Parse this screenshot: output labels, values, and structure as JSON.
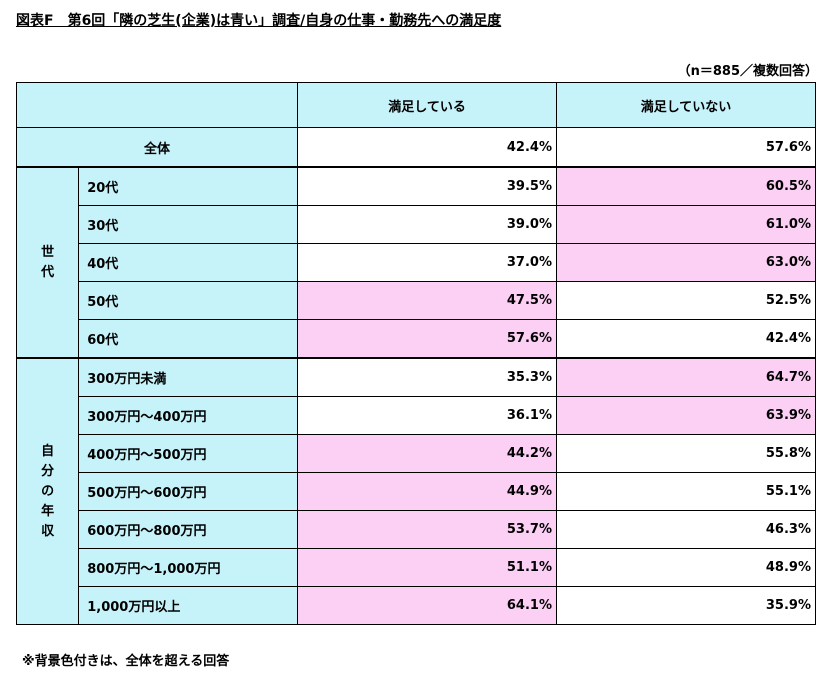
{
  "title": "図表F　第6回「隣の芝生(企業)は青い」調査/自身の仕事・勤務先への満足度",
  "sample_note": "（n＝885／複数回答）",
  "columns": {
    "satisfied": "満足している",
    "not_satisfied": "満足していない"
  },
  "total": {
    "label": "全体",
    "satisfied": "42.4%",
    "not_satisfied": "57.6%"
  },
  "groups": [
    {
      "label": "世代",
      "rows": [
        {
          "label": "20代",
          "satisfied": "39.5%",
          "not_satisfied": "60.5%",
          "hl": "not_satisfied"
        },
        {
          "label": "30代",
          "satisfied": "39.0%",
          "not_satisfied": "61.0%",
          "hl": "not_satisfied"
        },
        {
          "label": "40代",
          "satisfied": "37.0%",
          "not_satisfied": "63.0%",
          "hl": "not_satisfied"
        },
        {
          "label": "50代",
          "satisfied": "47.5%",
          "not_satisfied": "52.5%",
          "hl": "satisfied"
        },
        {
          "label": "60代",
          "satisfied": "57.6%",
          "not_satisfied": "42.4%",
          "hl": "satisfied"
        }
      ]
    },
    {
      "label": "自分の年収",
      "rows": [
        {
          "label": "300万円未満",
          "satisfied": "35.3%",
          "not_satisfied": "64.7%",
          "hl": "not_satisfied"
        },
        {
          "label": "300万円～400万円",
          "satisfied": "36.1%",
          "not_satisfied": "63.9%",
          "hl": "not_satisfied"
        },
        {
          "label": "400万円～500万円",
          "satisfied": "44.2%",
          "not_satisfied": "55.8%",
          "hl": "satisfied"
        },
        {
          "label": "500万円～600万円",
          "satisfied": "44.9%",
          "not_satisfied": "55.1%",
          "hl": "satisfied"
        },
        {
          "label": "600万円～800万円",
          "satisfied": "53.7%",
          "not_satisfied": "46.3%",
          "hl": "satisfied"
        },
        {
          "label": "800万円～1,000万円",
          "satisfied": "51.1%",
          "not_satisfied": "48.9%",
          "hl": "satisfied"
        },
        {
          "label": "1,000万円以上",
          "satisfied": "64.1%",
          "not_satisfied": "35.9%",
          "hl": "satisfied"
        }
      ]
    }
  ],
  "footer": "※背景色付きは、全体を超える回答",
  "colors": {
    "header_bg": "#c6f2f9",
    "highlight_bg": "#fbd0f4"
  }
}
